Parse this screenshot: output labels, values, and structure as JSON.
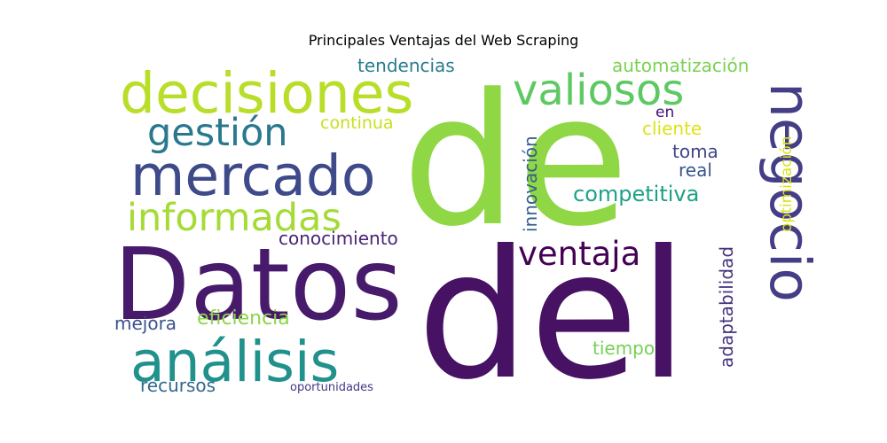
{
  "chart_data": {
    "type": "wordcloud",
    "title": "Principales Ventajas del Web Scraping",
    "words": [
      {
        "text": "de",
        "color": "#8fd744"
      },
      {
        "text": "del",
        "color": "#471164"
      },
      {
        "text": "Datos",
        "color": "#481a6c"
      },
      {
        "text": "decisiones",
        "color": "#b8de29"
      },
      {
        "text": "mercado",
        "color": "#3e4a89"
      },
      {
        "text": "negocio",
        "color": "#433e85"
      },
      {
        "text": "análisis",
        "color": "#21918c"
      },
      {
        "text": "informadas",
        "color": "#a5db36"
      },
      {
        "text": "valiosos",
        "color": "#5ec962"
      },
      {
        "text": "gestión",
        "color": "#2a788e"
      },
      {
        "text": "ventaja",
        "color": "#440154"
      },
      {
        "text": "competitiva",
        "color": "#1fa187"
      },
      {
        "text": "conocimiento",
        "color": "#482576"
      },
      {
        "text": "eficiencia",
        "color": "#8bd646"
      },
      {
        "text": "recursos",
        "color": "#31688e"
      },
      {
        "text": "mejora",
        "color": "#3b528b"
      },
      {
        "text": "tiempo",
        "color": "#75d054"
      },
      {
        "text": "tendencias",
        "color": "#287c8e"
      },
      {
        "text": "continua",
        "color": "#c8e020"
      },
      {
        "text": "automatización",
        "color": "#7ad151"
      },
      {
        "text": "en",
        "color": "#3f0f72"
      },
      {
        "text": "cliente",
        "color": "#dde318"
      },
      {
        "text": "toma",
        "color": "#414487"
      },
      {
        "text": "real",
        "color": "#39568c"
      },
      {
        "text": "innovación",
        "color": "#355f8d"
      },
      {
        "text": "optimización",
        "color": "#dbe318"
      },
      {
        "text": "adaptabilidad",
        "color": "#46327e"
      },
      {
        "text": "oportunidades",
        "color": "#443983"
      }
    ]
  }
}
